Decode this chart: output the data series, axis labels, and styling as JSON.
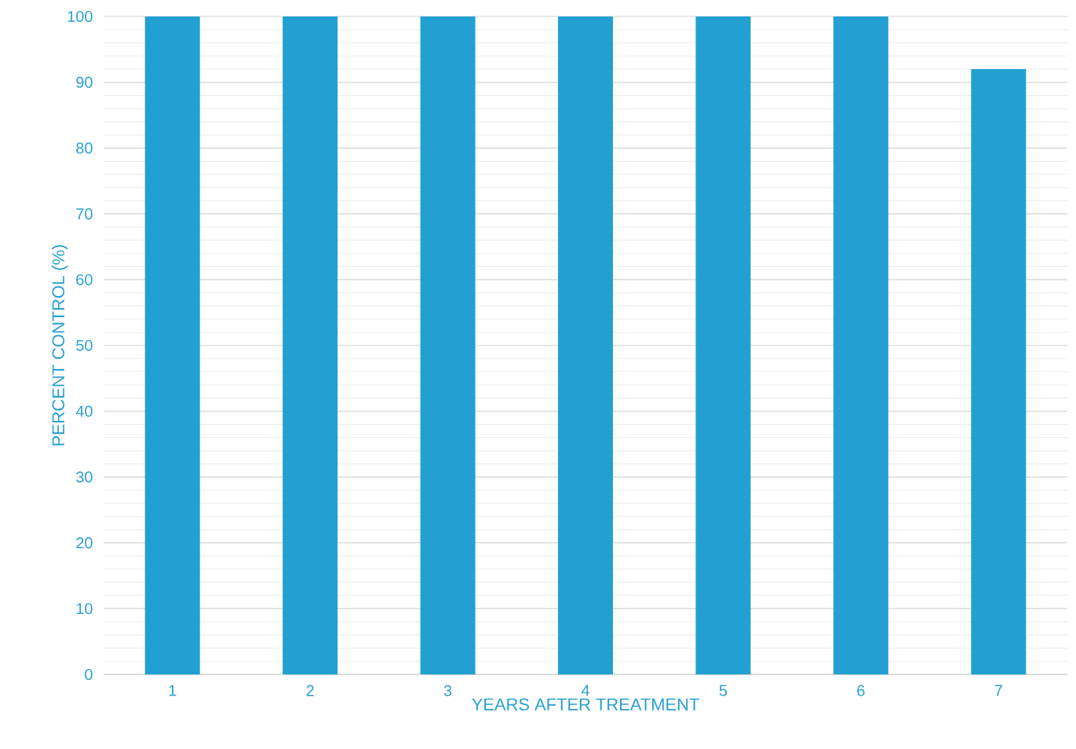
{
  "chart_data": {
    "type": "bar",
    "xlabel": "YEARS AFTER TREATMENT",
    "ylabel": "PERCENT CONTROL (%)",
    "categories": [
      "1",
      "2",
      "3",
      "4",
      "5",
      "6",
      "7"
    ],
    "values": [
      100,
      100,
      100,
      100,
      100,
      100,
      92
    ],
    "color": "#22a0d2",
    "ylim": [
      0,
      100
    ],
    "yticks": [
      0,
      10,
      20,
      30,
      40,
      50,
      60,
      70,
      80,
      90,
      100
    ],
    "grid": "y"
  }
}
